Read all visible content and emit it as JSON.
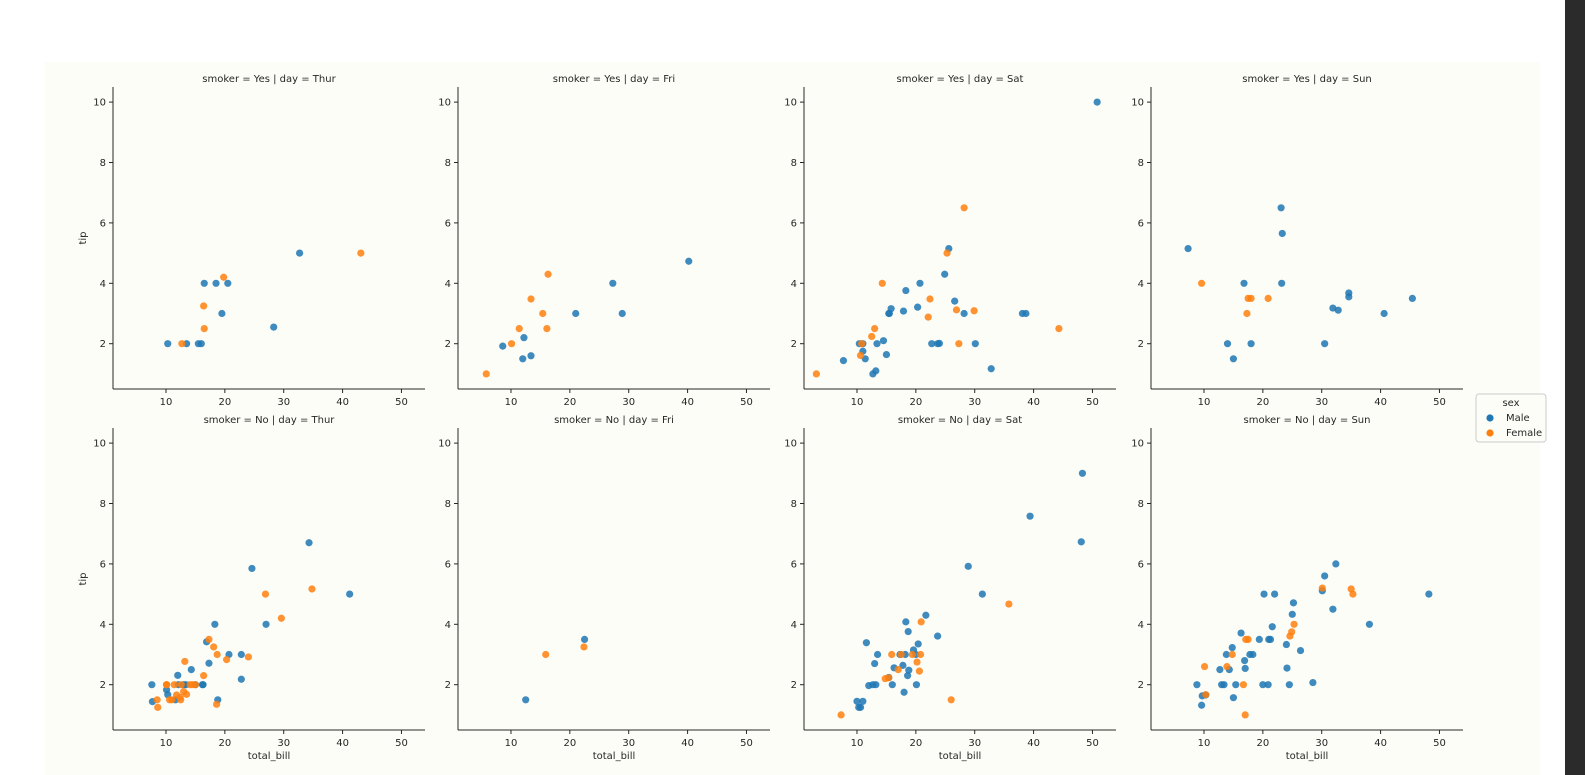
{
  "chart_data": {
    "type": "scatter",
    "facet_rows": "smoker",
    "facet_cols": "day",
    "xlabel": "total_bill",
    "ylabel": "tip",
    "xlim": [
      1,
      54
    ],
    "ylim": [
      0.5,
      10.5
    ],
    "xticks": [
      10,
      20,
      30,
      40,
      50
    ],
    "yticks": [
      2,
      4,
      6,
      8,
      10
    ],
    "grid": false,
    "legend": {
      "title": "sex",
      "position": "right-center",
      "entries": [
        {
          "name": "Male",
          "color": "#1f77b4"
        },
        {
          "name": "Female",
          "color": "#ff7f0e"
        }
      ]
    },
    "panels": [
      {
        "title": "smoker = Yes | day = Thur",
        "row": 0,
        "col": 0,
        "Male": [
          [
            10.3,
            2.0
          ],
          [
            13.5,
            2.0
          ],
          [
            15.5,
            2.0
          ],
          [
            16.0,
            2.0
          ],
          [
            16.5,
            4.0
          ],
          [
            18.5,
            4.0
          ],
          [
            19.5,
            3.0
          ],
          [
            20.5,
            4.0
          ],
          [
            28.3,
            2.55
          ],
          [
            32.7,
            5.0
          ]
        ],
        "Female": [
          [
            12.7,
            2.0
          ],
          [
            16.4,
            3.25
          ],
          [
            16.5,
            2.5
          ],
          [
            19.8,
            4.2
          ],
          [
            43.1,
            5.0
          ]
        ]
      },
      {
        "title": "smoker = Yes | day = Fri",
        "row": 0,
        "col": 1,
        "Male": [
          [
            8.6,
            1.92
          ],
          [
            12.2,
            2.2
          ],
          [
            12.0,
            1.5
          ],
          [
            13.4,
            1.6
          ],
          [
            21.0,
            3.0
          ],
          [
            27.3,
            4.0
          ],
          [
            28.9,
            3.0
          ],
          [
            40.2,
            4.73
          ]
        ],
        "Female": [
          [
            5.8,
            1.0
          ],
          [
            10.1,
            2.0
          ],
          [
            11.4,
            2.5
          ],
          [
            13.4,
            3.48
          ],
          [
            15.4,
            3.0
          ],
          [
            16.1,
            2.5
          ],
          [
            16.3,
            4.3
          ]
        ]
      },
      {
        "title": "smoker = Yes | day = Sat",
        "row": 0,
        "col": 2,
        "Male": [
          [
            7.7,
            1.44
          ],
          [
            10.4,
            2.0
          ],
          [
            11.0,
            2.0
          ],
          [
            11.0,
            1.75
          ],
          [
            11.4,
            1.5
          ],
          [
            12.7,
            1.0
          ],
          [
            13.2,
            1.1
          ],
          [
            13.4,
            2.0
          ],
          [
            14.5,
            2.1
          ],
          [
            15.0,
            1.64
          ],
          [
            15.4,
            3.0
          ],
          [
            15.5,
            3.0
          ],
          [
            15.8,
            3.16
          ],
          [
            17.9,
            3.08
          ],
          [
            18.3,
            3.76
          ],
          [
            20.3,
            3.21
          ],
          [
            20.7,
            4.0
          ],
          [
            22.7,
            2.0
          ],
          [
            23.7,
            2.0
          ],
          [
            24.0,
            2.01
          ],
          [
            24.9,
            4.3
          ],
          [
            25.6,
            5.15
          ],
          [
            26.6,
            3.41
          ],
          [
            28.2,
            3.0
          ],
          [
            30.1,
            2.0
          ],
          [
            32.8,
            1.17
          ],
          [
            38.1,
            3.0
          ],
          [
            38.7,
            3.0
          ],
          [
            50.8,
            10.0
          ]
        ],
        "Female": [
          [
            3.1,
            1.0
          ],
          [
            10.6,
            1.61
          ],
          [
            10.8,
            2.0
          ],
          [
            12.5,
            2.24
          ],
          [
            13.0,
            2.5
          ],
          [
            14.3,
            4.0
          ],
          [
            22.1,
            2.88
          ],
          [
            22.4,
            3.48
          ],
          [
            25.3,
            5.0
          ],
          [
            26.9,
            3.12
          ],
          [
            27.3,
            2.0
          ],
          [
            28.2,
            6.5
          ],
          [
            29.9,
            3.09
          ],
          [
            44.3,
            2.5
          ]
        ]
      },
      {
        "title": "smoker = Yes | day = Sun",
        "row": 0,
        "col": 3,
        "Male": [
          [
            7.3,
            5.15
          ],
          [
            14.0,
            2.0
          ],
          [
            15.0,
            1.5
          ],
          [
            16.8,
            4.0
          ],
          [
            18.0,
            2.0
          ],
          [
            23.1,
            6.5
          ],
          [
            23.3,
            5.65
          ],
          [
            23.2,
            4.0
          ],
          [
            30.5,
            2.0
          ],
          [
            31.9,
            3.18
          ],
          [
            32.8,
            3.11
          ],
          [
            34.6,
            3.55
          ],
          [
            34.6,
            3.68
          ],
          [
            40.6,
            3.0
          ],
          [
            45.4,
            3.5
          ]
        ],
        "Female": [
          [
            9.6,
            4.0
          ],
          [
            17.3,
            3.0
          ],
          [
            17.5,
            3.5
          ],
          [
            18.0,
            3.5
          ],
          [
            20.9,
            3.5
          ]
        ]
      },
      {
        "title": "smoker = No | day = Thur",
        "row": 1,
        "col": 0,
        "Male": [
          [
            7.6,
            2.0
          ],
          [
            7.7,
            1.44
          ],
          [
            10.1,
            1.83
          ],
          [
            10.3,
            1.67
          ],
          [
            11.6,
            1.5
          ],
          [
            12.1,
            2.0
          ],
          [
            12.0,
            2.31
          ],
          [
            13.0,
            2.0
          ],
          [
            13.4,
            2.0
          ],
          [
            14.3,
            2.5
          ],
          [
            15.0,
            2.0
          ],
          [
            16.2,
            2.0
          ],
          [
            16.3,
            2.0
          ],
          [
            16.9,
            3.42
          ],
          [
            17.3,
            2.71
          ],
          [
            18.3,
            4.0
          ],
          [
            18.8,
            1.5
          ],
          [
            20.7,
            3.0
          ],
          [
            22.8,
            2.18
          ],
          [
            22.8,
            3.0
          ],
          [
            24.6,
            5.85
          ],
          [
            27.0,
            4.0
          ],
          [
            34.3,
            6.7
          ],
          [
            41.2,
            5.0
          ]
        ],
        "Female": [
          [
            8.5,
            1.5
          ],
          [
            8.6,
            1.25
          ],
          [
            10.1,
            2.0
          ],
          [
            10.1,
            2.0
          ],
          [
            10.6,
            1.5
          ],
          [
            11.0,
            1.5
          ],
          [
            11.4,
            2.0
          ],
          [
            11.8,
            1.66
          ],
          [
            12.4,
            1.58
          ],
          [
            12.5,
            1.5
          ],
          [
            12.6,
            2.0
          ],
          [
            13.0,
            1.77
          ],
          [
            13.2,
            2.77
          ],
          [
            13.5,
            1.68
          ],
          [
            14.1,
            2.0
          ],
          [
            14.5,
            2.0
          ],
          [
            15.0,
            2.0
          ],
          [
            16.4,
            2.3
          ],
          [
            17.3,
            3.5
          ],
          [
            18.1,
            3.25
          ],
          [
            18.6,
            1.35
          ],
          [
            18.7,
            3.0
          ],
          [
            20.3,
            2.83
          ],
          [
            24.0,
            2.92
          ],
          [
            26.9,
            5.0
          ],
          [
            29.6,
            4.2
          ],
          [
            34.8,
            5.17
          ]
        ]
      },
      {
        "title": "smoker = No | day = Fri",
        "row": 1,
        "col": 1,
        "Male": [
          [
            12.5,
            1.5
          ],
          [
            22.5,
            3.5
          ]
        ],
        "Female": [
          [
            15.9,
            3.0
          ],
          [
            22.4,
            3.25
          ]
        ]
      },
      {
        "title": "smoker = No | day = Sat",
        "row": 1,
        "col": 2,
        "Male": [
          [
            10.0,
            1.45
          ],
          [
            10.3,
            1.25
          ],
          [
            10.6,
            1.25
          ],
          [
            11.0,
            1.45
          ],
          [
            11.6,
            3.39
          ],
          [
            12.0,
            1.97
          ],
          [
            12.7,
            2.0
          ],
          [
            13.2,
            2.0
          ],
          [
            13.0,
            2.7
          ],
          [
            13.5,
            3.0
          ],
          [
            15.4,
            2.24
          ],
          [
            16.0,
            2.0
          ],
          [
            16.3,
            2.56
          ],
          [
            17.3,
            3.0
          ],
          [
            17.8,
            2.64
          ],
          [
            18.0,
            1.75
          ],
          [
            18.2,
            3.0
          ],
          [
            18.3,
            4.08
          ],
          [
            18.6,
            2.3
          ],
          [
            18.7,
            3.76
          ],
          [
            18.8,
            2.48
          ],
          [
            19.6,
            3.15
          ],
          [
            20.0,
            3.0
          ],
          [
            20.1,
            2.0
          ],
          [
            20.4,
            3.35
          ],
          [
            21.7,
            4.3
          ],
          [
            23.7,
            3.61
          ],
          [
            28.9,
            5.92
          ],
          [
            31.3,
            5.0
          ],
          [
            39.4,
            7.58
          ],
          [
            48.1,
            6.73
          ],
          [
            48.3,
            9.0
          ]
        ],
        "Female": [
          [
            7.3,
            1.0
          ],
          [
            14.8,
            2.2
          ],
          [
            15.4,
            2.23
          ],
          [
            15.9,
            3.0
          ],
          [
            17.0,
            2.5
          ],
          [
            17.5,
            3.0
          ],
          [
            19.4,
            3.0
          ],
          [
            20.2,
            2.75
          ],
          [
            20.6,
            2.45
          ],
          [
            20.8,
            3.0
          ],
          [
            20.9,
            4.08
          ],
          [
            26.0,
            1.5
          ],
          [
            35.8,
            4.67
          ]
        ]
      },
      {
        "title": "smoker = No | day = Sun",
        "row": 1,
        "col": 3,
        "Male": [
          [
            8.8,
            2.0
          ],
          [
            9.6,
            1.32
          ],
          [
            9.7,
            1.63
          ],
          [
            10.3,
            1.66
          ],
          [
            12.7,
            2.5
          ],
          [
            13.0,
            2.0
          ],
          [
            13.4,
            2.0
          ],
          [
            13.8,
            3.0
          ],
          [
            14.3,
            2.5
          ],
          [
            14.8,
            3.23
          ],
          [
            15.0,
            1.57
          ],
          [
            15.4,
            2.0
          ],
          [
            16.3,
            3.71
          ],
          [
            16.9,
            2.8
          ],
          [
            17.0,
            2.54
          ],
          [
            17.8,
            3.0
          ],
          [
            18.3,
            3.0
          ],
          [
            19.4,
            3.5
          ],
          [
            20.0,
            2.0
          ],
          [
            20.2,
            5.0
          ],
          [
            20.9,
            2.0
          ],
          [
            21.0,
            3.5
          ],
          [
            21.3,
            3.5
          ],
          [
            21.6,
            3.92
          ],
          [
            22.0,
            5.0
          ],
          [
            24.0,
            3.33
          ],
          [
            24.1,
            2.55
          ],
          [
            24.5,
            2.0
          ],
          [
            25.0,
            4.33
          ],
          [
            25.2,
            4.71
          ],
          [
            26.4,
            3.13
          ],
          [
            28.5,
            2.07
          ],
          [
            30.1,
            5.11
          ],
          [
            30.5,
            5.6
          ],
          [
            31.9,
            4.5
          ],
          [
            32.4,
            6.0
          ],
          [
            38.1,
            4.0
          ],
          [
            48.2,
            5.0
          ]
        ],
        "Female": [
          [
            10.1,
            2.6
          ],
          [
            10.3,
            1.67
          ],
          [
            13.9,
            2.6
          ],
          [
            14.8,
            3.0
          ],
          [
            16.7,
            2.0
          ],
          [
            17.0,
            1.0
          ],
          [
            17.1,
            3.5
          ],
          [
            17.5,
            3.5
          ],
          [
            24.6,
            3.61
          ],
          [
            24.9,
            3.75
          ],
          [
            25.3,
            4.0
          ],
          [
            30.1,
            5.2
          ],
          [
            35.0,
            5.17
          ],
          [
            35.3,
            5.0
          ]
        ]
      }
    ]
  }
}
